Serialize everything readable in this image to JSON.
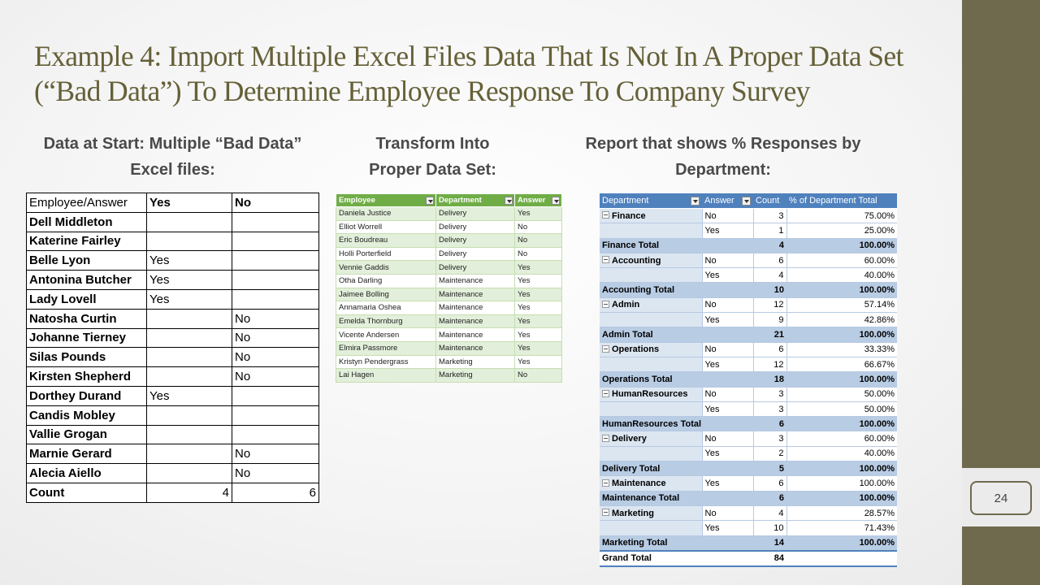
{
  "title": "Example 4: Import Multiple Excel Files Data That Is Not In A Proper Data Set (“Bad Data”) To Determine Employee Response To Company Survey",
  "page_number": "24",
  "sections": {
    "start": "Data at Start: Multiple “Bad Data” Excel files:",
    "transform": "Transform Into Proper Data Set:",
    "report": "Report that shows % Responses by Department:"
  },
  "bad_data": {
    "headers": [
      "Employee/Answer",
      "Yes",
      "No"
    ],
    "rows": [
      [
        "Dell Middleton",
        "",
        ""
      ],
      [
        "Katerine Fairley",
        "",
        ""
      ],
      [
        "Belle Lyon",
        "Yes",
        ""
      ],
      [
        "Antonina Butcher",
        "Yes",
        ""
      ],
      [
        "Lady Lovell",
        "Yes",
        ""
      ],
      [
        "Natosha Curtin",
        "",
        "No"
      ],
      [
        "Johanne Tierney",
        "",
        "No"
      ],
      [
        "Silas Pounds",
        "",
        "No"
      ],
      [
        "Kirsten Shepherd",
        "",
        "No"
      ],
      [
        "Dorthey Durand",
        "Yes",
        ""
      ],
      [
        "Candis Mobley",
        "",
        ""
      ],
      [
        "Vallie Grogan",
        "",
        ""
      ],
      [
        "Marnie Gerard",
        "",
        "No"
      ],
      [
        "Alecia Aiello",
        "",
        "No"
      ]
    ],
    "count": [
      "Count",
      "4",
      "6"
    ]
  },
  "proper_data": {
    "headers": [
      "Employee",
      "Department",
      "Answer"
    ],
    "rows": [
      [
        "Daniela Justice",
        "Delivery",
        "Yes"
      ],
      [
        "Elliot Worrell",
        "Delivery",
        "No"
      ],
      [
        "Eric Boudreau",
        "Delivery",
        "No"
      ],
      [
        "Holli Porterfield",
        "Delivery",
        "No"
      ],
      [
        "Vennie Gaddis",
        "Delivery",
        "Yes"
      ],
      [
        "Otha Darling",
        "Maintenance",
        "Yes"
      ],
      [
        "Jaimee Bolling",
        "Maintenance",
        "Yes"
      ],
      [
        "Annamaria Oshea",
        "Maintenance",
        "Yes"
      ],
      [
        "Emelda Thornburg",
        "Maintenance",
        "Yes"
      ],
      [
        "Vicente Andersen",
        "Maintenance",
        "Yes"
      ],
      [
        "Elmira Passmore",
        "Maintenance",
        "Yes"
      ],
      [
        "Kristyn Pendergrass",
        "Marketing",
        "Yes"
      ],
      [
        "Lai Hagen",
        "Marketing",
        "No"
      ]
    ]
  },
  "report": {
    "headers": [
      "Department",
      "Answer",
      "Count",
      "% of Department Total"
    ],
    "departments": [
      {
        "name": "Finance",
        "rows": [
          [
            "No",
            "3",
            "75.00%"
          ],
          [
            "Yes",
            "1",
            "25.00%"
          ]
        ],
        "total_label": "Finance Total",
        "total_count": "4",
        "total_pct": "100.00%"
      },
      {
        "name": "Accounting",
        "rows": [
          [
            "No",
            "6",
            "60.00%"
          ],
          [
            "Yes",
            "4",
            "40.00%"
          ]
        ],
        "total_label": "Accounting Total",
        "total_count": "10",
        "total_pct": "100.00%"
      },
      {
        "name": "Admin",
        "rows": [
          [
            "No",
            "12",
            "57.14%"
          ],
          [
            "Yes",
            "9",
            "42.86%"
          ]
        ],
        "total_label": "Admin Total",
        "total_count": "21",
        "total_pct": "100.00%"
      },
      {
        "name": "Operations",
        "rows": [
          [
            "No",
            "6",
            "33.33%"
          ],
          [
            "Yes",
            "12",
            "66.67%"
          ]
        ],
        "total_label": "Operations Total",
        "total_count": "18",
        "total_pct": "100.00%"
      },
      {
        "name": "HumanResources",
        "rows": [
          [
            "No",
            "3",
            "50.00%"
          ],
          [
            "Yes",
            "3",
            "50.00%"
          ]
        ],
        "total_label": "HumanResources Total",
        "total_count": "6",
        "total_pct": "100.00%"
      },
      {
        "name": "Delivery",
        "rows": [
          [
            "No",
            "3",
            "60.00%"
          ],
          [
            "Yes",
            "2",
            "40.00%"
          ]
        ],
        "total_label": "Delivery Total",
        "total_count": "5",
        "total_pct": "100.00%"
      },
      {
        "name": "Maintenance",
        "rows": [
          [
            "Yes",
            "6",
            "100.00%"
          ]
        ],
        "total_label": "Maintenance Total",
        "total_count": "6",
        "total_pct": "100.00%"
      },
      {
        "name": "Marketing",
        "rows": [
          [
            "No",
            "4",
            "28.57%"
          ],
          [
            "Yes",
            "10",
            "71.43%"
          ]
        ],
        "total_label": "Marketing Total",
        "total_count": "14",
        "total_pct": "100.00%"
      }
    ],
    "grand_total": {
      "label": "Grand Total",
      "count": "84",
      "pct": ""
    }
  }
}
